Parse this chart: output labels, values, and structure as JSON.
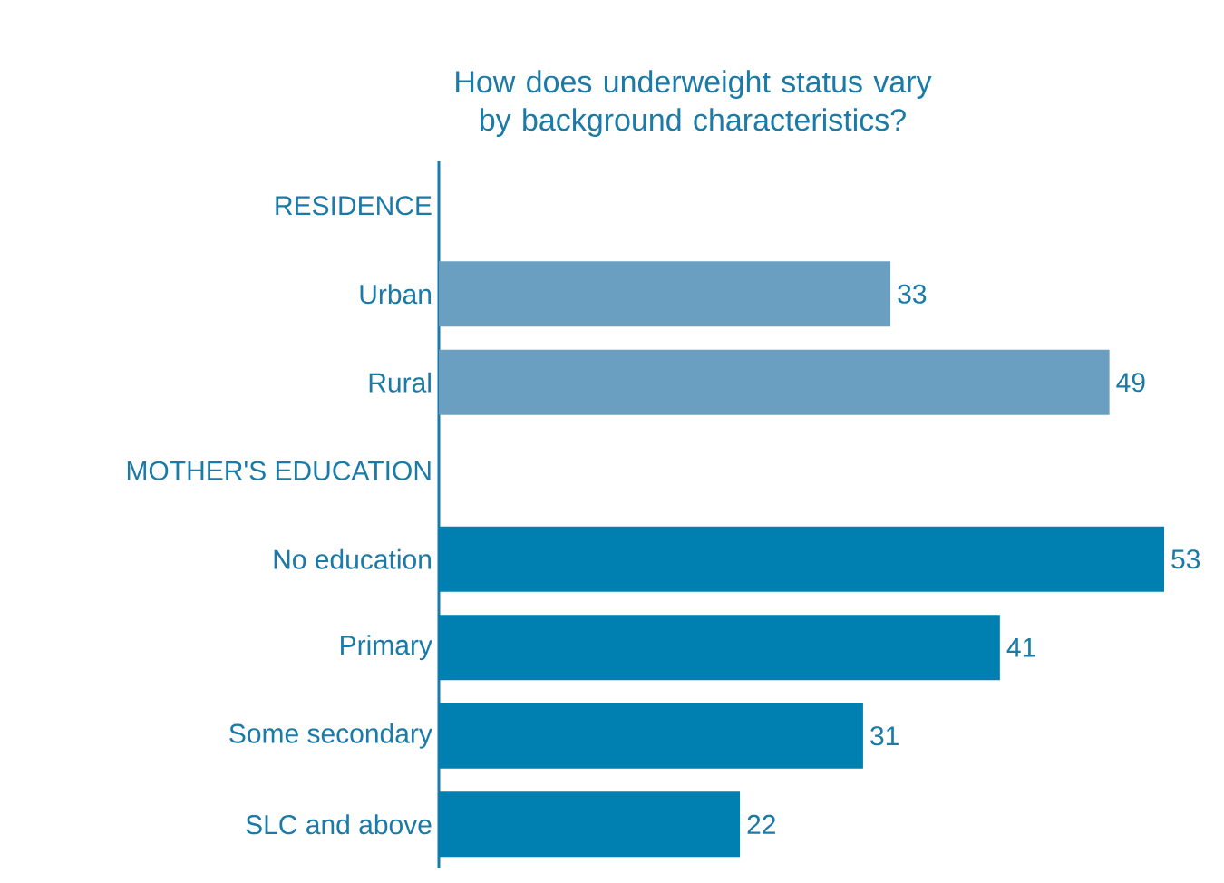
{
  "chart_data": {
    "type": "bar",
    "orientation": "horizontal",
    "title": "How does underweight status vary by background characteristics?",
    "categories": [
      "RESIDENCE",
      "Urban",
      "Rural",
      "MOTHER'S EDUCATION",
      "No education",
      "Primary",
      "Some secondary",
      "SLC and above"
    ],
    "values": [
      null,
      33,
      49,
      null,
      53,
      41,
      31,
      22
    ],
    "colors": [
      "#6a9fc2",
      "#6a9fc2",
      "#6a9fc2",
      "#0080b0",
      "#0080b0",
      "#0080b0",
      "#0080b0",
      "#0080b0"
    ],
    "data_labels": true
  }
}
